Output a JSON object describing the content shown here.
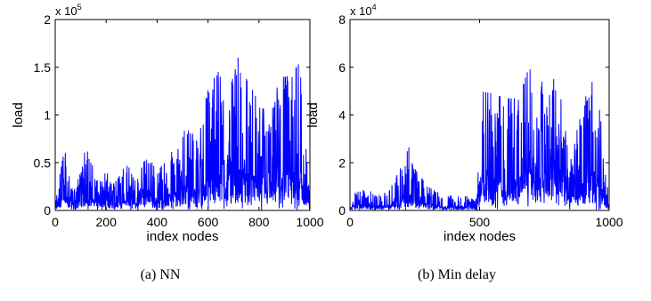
{
  "chart_data": [
    {
      "type": "line",
      "panel": "a",
      "caption": "(a) NN",
      "xlabel": "index nodes",
      "ylabel": "load",
      "xlim": [
        0,
        1000
      ],
      "ylim": [
        0,
        2
      ],
      "exponent_base": "x 10",
      "exponent_power": "5",
      "xticks": [
        0,
        200,
        400,
        600,
        800,
        1000
      ],
      "xtick_labels": [
        "0",
        "200",
        "400",
        "600",
        "800",
        "1000"
      ],
      "yticks": [
        0,
        0.5,
        1,
        1.5,
        2
      ],
      "ytick_labels": [
        "0",
        "0.5",
        "1",
        "1.5",
        "2"
      ],
      "color": "#0000ff",
      "series": [
        {
          "x": [
            0,
            40,
            80,
            120,
            160,
            200,
            240,
            280,
            320,
            360,
            400,
            440,
            480,
            520,
            560,
            600,
            640,
            680,
            720,
            760,
            800,
            840,
            880,
            920,
            960,
            1000
          ],
          "values": [
            0.1,
            0.7,
            0.2,
            0.85,
            0.3,
            0.45,
            0.3,
            0.5,
            0.3,
            0.6,
            0.4,
            0.55,
            0.7,
            0.9,
            0.7,
            1.3,
            1.45,
            1.2,
            1.65,
            1.3,
            1.2,
            0.9,
            1.4,
            1.4,
            1.55,
            0.1
          ]
        }
      ]
    },
    {
      "type": "line",
      "panel": "b",
      "caption": "(b) Min delay",
      "xlabel": "index nodes",
      "ylabel": "load",
      "xlim": [
        0,
        1000
      ],
      "ylim": [
        0,
        8
      ],
      "exponent_base": "x 10",
      "exponent_power": "4",
      "xticks": [
        0,
        500,
        1000
      ],
      "xtick_labels": [
        "0",
        "500",
        "1000"
      ],
      "yticks": [
        0,
        2,
        4,
        6,
        8
      ],
      "ytick_labels": [
        "0",
        "2",
        "4",
        "6",
        "8"
      ],
      "color": "#0000ff",
      "series": [
        {
          "x": [
            0,
            50,
            100,
            150,
            200,
            220,
            250,
            300,
            350,
            400,
            450,
            490,
            500,
            550,
            600,
            650,
            700,
            720,
            750,
            800,
            850,
            900,
            950,
            1000
          ],
          "values": [
            0.5,
            1.1,
            0.6,
            0.8,
            1.9,
            2.9,
            1.8,
            1.0,
            0.7,
            0.6,
            0.6,
            0.5,
            5.0,
            4.9,
            4.7,
            4.7,
            6.3,
            6.3,
            5.0,
            5.7,
            2.0,
            4.7,
            5.7,
            0.5
          ]
        }
      ]
    }
  ]
}
